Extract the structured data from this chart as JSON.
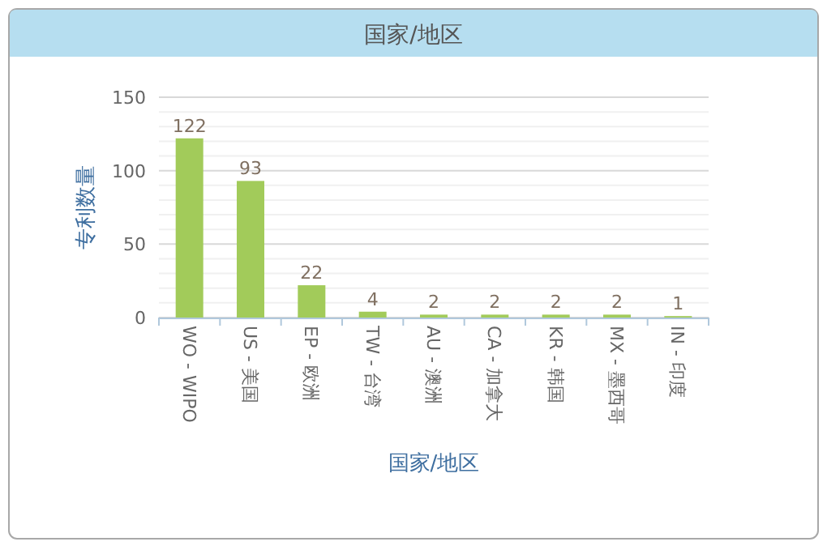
{
  "chart_data": {
    "type": "bar",
    "title": "国家/地区",
    "xlabel": "国家/地区",
    "ylabel": "专利数量",
    "categories": [
      "WO - WIPO",
      "US - 美国",
      "EP - 欧洲",
      "TW - 台湾",
      "AU - 澳洲",
      "CA - 加拿大",
      "KR - 韩国",
      "MX - 墨西哥",
      "IN - 印度"
    ],
    "values": [
      122,
      93,
      22,
      4,
      2,
      2,
      2,
      2,
      1
    ],
    "color": "#a2cb5a",
    "data_labels": true,
    "grid": "y",
    "ylim": [
      0,
      150
    ],
    "yticks": [
      0,
      {
        "value": 10,
        "label": null
      },
      {
        "value": 20,
        "label": null
      },
      {
        "value": 30,
        "label": null
      },
      {
        "value": 40,
        "label": null
      },
      50,
      {
        "value": 60,
        "label": null
      },
      {
        "value": 70,
        "label": null
      },
      {
        "value": 80,
        "label": null
      },
      {
        "value": 90,
        "label": null
      },
      100,
      {
        "value": 110,
        "label": null
      },
      {
        "value": 120,
        "label": null
      },
      {
        "value": 130,
        "label": null
      },
      {
        "value": 140,
        "label": null
      },
      150
    ]
  }
}
